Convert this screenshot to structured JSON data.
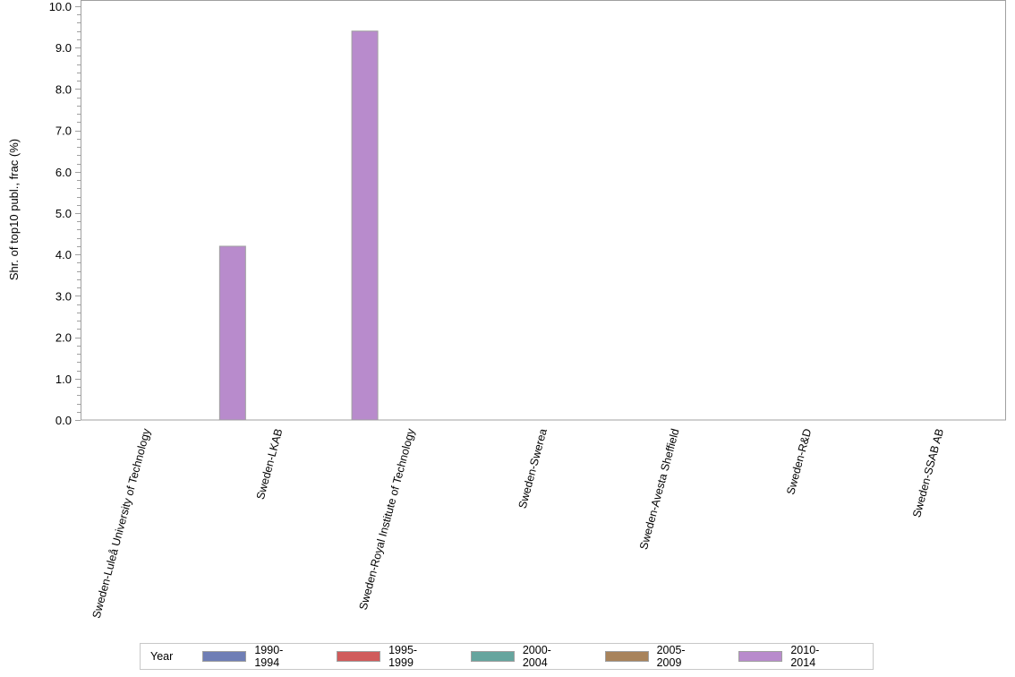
{
  "chart_data": {
    "type": "bar",
    "title": "",
    "xlabel": "",
    "ylabel": "Shr. of top10 publ., frac (%)",
    "ylim": [
      0,
      10
    ],
    "yticks": [
      "0.0",
      "1.0",
      "2.0",
      "3.0",
      "4.0",
      "5.0",
      "6.0",
      "7.0",
      "8.0",
      "9.0",
      "10.0"
    ],
    "grid": false,
    "legend_position": "bottom",
    "legend_title": "Year",
    "categories": [
      "Sweden-Luleå University of Technology",
      "Sweden-LKAB",
      "Sweden-Royal Institute of Technology",
      "Sweden-Swerea",
      "Sweden-Avesta Sheffield",
      "Sweden-R&D",
      "Sweden-SSAB AB"
    ],
    "series": [
      {
        "name": "1990-1994",
        "color": "#6f7eb5",
        "values": [
          0,
          0,
          0,
          0,
          0,
          0,
          0
        ]
      },
      {
        "name": "1995-1999",
        "color": "#d05b5b",
        "values": [
          0,
          0,
          0,
          0,
          0,
          0,
          0
        ]
      },
      {
        "name": "2000-2004",
        "color": "#66a59e",
        "values": [
          0,
          0,
          0,
          0,
          0,
          0,
          0
        ]
      },
      {
        "name": "2005-2009",
        "color": "#a8835b",
        "values": [
          0,
          0,
          0,
          0,
          0,
          0,
          0
        ]
      },
      {
        "name": "2010-2014",
        "color": "#b88bcc",
        "values": [
          4.2,
          9.4,
          0,
          0,
          0,
          0,
          0
        ]
      }
    ]
  }
}
